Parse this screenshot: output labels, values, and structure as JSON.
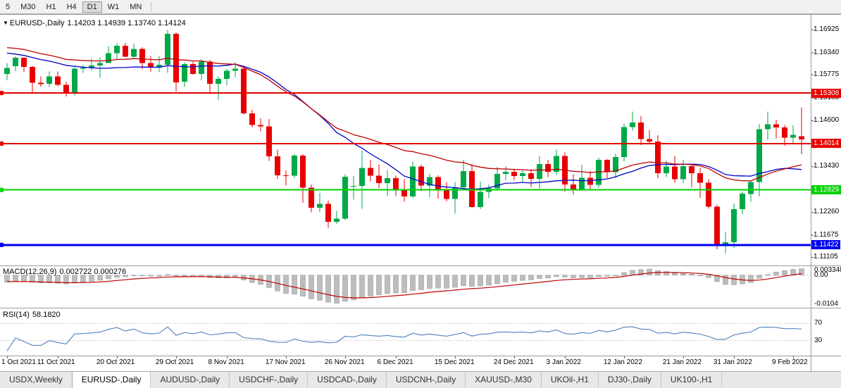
{
  "colors": {
    "up": "#00A847",
    "down": "#E80000",
    "ma_blue": "#0000C8",
    "ma_red": "#C00000",
    "macd_hist": "#bdbdbd",
    "macd_signal": "#C00000",
    "rsi_line": "#4f81bd",
    "hline_red": "#E80000",
    "hline_green": "#00D200",
    "hline_blue": "#0000F0"
  },
  "toolbar": {
    "timeframes": [
      "5",
      "M30",
      "H1",
      "H4",
      "D1",
      "W1",
      "MN"
    ],
    "active": "D1"
  },
  "chart": {
    "symbol_title": "EURUSD-,Daily",
    "ohlc_text": "1.14203 1.14939 1.13740 1.14124"
  },
  "chart_data": {
    "type": "candlestick",
    "symbol": "EURUSD-",
    "timeframe": "Daily",
    "price_range": {
      "top": 1.1722,
      "bottom": 1.1095
    },
    "y_axis": {
      "ticks": [
        "1.16925",
        "1.16340",
        "1.15775",
        "1.15185",
        "1.14600",
        "1.13430",
        "1.12260",
        "1.11675",
        "1.11105"
      ]
    },
    "hlines": [
      {
        "price": 1.15308,
        "label": "1.15308",
        "color_key": "hline_red",
        "width": 2
      },
      {
        "price": 1.14014,
        "label": "1.14014",
        "color_key": "hline_red",
        "width": 2
      },
      {
        "price": 1.12829,
        "label": "1.12829",
        "color_key": "hline_green",
        "width": 2
      },
      {
        "price": 1.11422,
        "label": "1.11422",
        "color_key": "hline_blue",
        "width": 3
      }
    ],
    "overlays": [
      {
        "name": "ma-blue",
        "type": "sma",
        "period": 20,
        "color_key": "ma_blue"
      },
      {
        "name": "ma-red",
        "type": "ema",
        "period": 30,
        "color_key": "ma_red"
      }
    ],
    "x_axis": [
      [
        "1 Oct 2021",
        0
      ],
      [
        "11 Oct 2021",
        6
      ],
      [
        "20 Oct 2021",
        13
      ],
      [
        "29 Oct 2021",
        20
      ],
      [
        "8 Nov 2021",
        26
      ],
      [
        "17 Nov 2021",
        33
      ],
      [
        "26 Nov 2021",
        40
      ],
      [
        "6 Dec 2021",
        46
      ],
      [
        "15 Dec 2021",
        53
      ],
      [
        "24 Dec 2021",
        60
      ],
      [
        "3 Jan 2022",
        66
      ],
      [
        "12 Jan 2022",
        73
      ],
      [
        "21 Jan 2022",
        80
      ],
      [
        "31 Jan 2022",
        86
      ],
      [
        "9 Feb 2022",
        93
      ]
    ],
    "candles": [
      [
        1.158,
        1.1608,
        1.1563,
        1.1595
      ],
      [
        1.16,
        1.1625,
        1.1587,
        1.1621
      ],
      [
        1.1621,
        1.1622,
        1.1585,
        1.1598
      ],
      [
        1.1598,
        1.16,
        1.1529,
        1.1557
      ],
      [
        1.1557,
        1.1573,
        1.1546,
        1.1554
      ],
      [
        1.1554,
        1.1586,
        1.1546,
        1.1573
      ],
      [
        1.1573,
        1.1586,
        1.1548,
        1.1552
      ],
      [
        1.1552,
        1.156,
        1.1522,
        1.153
      ],
      [
        1.153,
        1.1597,
        1.1525,
        1.1593
      ],
      [
        1.1593,
        1.1602,
        1.1582,
        1.1596
      ],
      [
        1.1596,
        1.1619,
        1.1588,
        1.1601
      ],
      [
        1.1601,
        1.1622,
        1.1571,
        1.1608
      ],
      [
        1.1608,
        1.1651,
        1.1608,
        1.1633
      ],
      [
        1.1633,
        1.1658,
        1.1617,
        1.1652
      ],
      [
        1.1652,
        1.1659,
        1.1622,
        1.1624
      ],
      [
        1.1624,
        1.1656,
        1.162,
        1.1644
      ],
      [
        1.1644,
        1.1648,
        1.1591,
        1.1608
      ],
      [
        1.1608,
        1.1626,
        1.1585,
        1.1596
      ],
      [
        1.1596,
        1.1626,
        1.1584,
        1.1603
      ],
      [
        1.1603,
        1.1692,
        1.1582,
        1.1682
      ],
      [
        1.1682,
        1.1686,
        1.1535,
        1.1558
      ],
      [
        1.156,
        1.1609,
        1.1547,
        1.1605
      ],
      [
        1.1605,
        1.1611,
        1.1578,
        1.158
      ],
      [
        1.158,
        1.1617,
        1.1563,
        1.1611
      ],
      [
        1.1611,
        1.1616,
        1.1528,
        1.1554
      ],
      [
        1.1554,
        1.1573,
        1.1514,
        1.1567
      ],
      [
        1.1567,
        1.1593,
        1.1551,
        1.1588
      ],
      [
        1.1588,
        1.1609,
        1.1572,
        1.1593
      ],
      [
        1.1593,
        1.1598,
        1.1476,
        1.1479
      ],
      [
        1.1479,
        1.1488,
        1.1443,
        1.1449
      ],
      [
        1.1449,
        1.1466,
        1.1433,
        1.1445
      ],
      [
        1.1445,
        1.1464,
        1.1357,
        1.1369
      ],
      [
        1.1369,
        1.1386,
        1.131,
        1.132
      ],
      [
        1.132,
        1.1333,
        1.1294,
        1.1319
      ],
      [
        1.1319,
        1.1374,
        1.1314,
        1.1371
      ],
      [
        1.1371,
        1.1374,
        1.125,
        1.1289
      ],
      [
        1.1289,
        1.1297,
        1.1226,
        1.1237
      ],
      [
        1.1237,
        1.1275,
        1.1226,
        1.1247
      ],
      [
        1.1247,
        1.1255,
        1.1186,
        1.1201
      ],
      [
        1.1201,
        1.1229,
        1.1196,
        1.1209
      ],
      [
        1.1209,
        1.1323,
        1.1206,
        1.1317
      ],
      [
        1.1291,
        1.1318,
        1.1258,
        1.1293
      ],
      [
        1.1293,
        1.1383,
        1.1235,
        1.1339
      ],
      [
        1.1339,
        1.136,
        1.1305,
        1.1319
      ],
      [
        1.1319,
        1.1348,
        1.1288,
        1.13
      ],
      [
        1.13,
        1.1334,
        1.1267,
        1.1313
      ],
      [
        1.1313,
        1.132,
        1.1267,
        1.1284
      ],
      [
        1.1284,
        1.131,
        1.1253,
        1.1266
      ],
      [
        1.1266,
        1.1355,
        1.1263,
        1.1343
      ],
      [
        1.1343,
        1.1348,
        1.128,
        1.1294
      ],
      [
        1.1294,
        1.1324,
        1.1264,
        1.1316
      ],
      [
        1.1316,
        1.132,
        1.1261,
        1.1284
      ],
      [
        1.1284,
        1.1303,
        1.1254,
        1.126
      ],
      [
        1.126,
        1.1303,
        1.1222,
        1.129
      ],
      [
        1.129,
        1.136,
        1.1289,
        1.1331
      ],
      [
        1.1331,
        1.1349,
        1.1237,
        1.1239
      ],
      [
        1.1239,
        1.1304,
        1.1234,
        1.1278
      ],
      [
        1.1278,
        1.1297,
        1.1262,
        1.1287
      ],
      [
        1.1287,
        1.1342,
        1.1284,
        1.1324
      ],
      [
        1.1324,
        1.1344,
        1.1308,
        1.1329
      ],
      [
        1.1329,
        1.1337,
        1.1308,
        1.1318
      ],
      [
        1.1318,
        1.1333,
        1.1304,
        1.1326
      ],
      [
        1.1326,
        1.1336,
        1.129,
        1.1311
      ],
      [
        1.1311,
        1.1369,
        1.1286,
        1.1349
      ],
      [
        1.1349,
        1.136,
        1.1316,
        1.1329
      ],
      [
        1.1329,
        1.1386,
        1.1322,
        1.137
      ],
      [
        1.137,
        1.1379,
        1.1279,
        1.1297
      ],
      [
        1.1297,
        1.1323,
        1.1272,
        1.1285
      ],
      [
        1.1285,
        1.1347,
        1.1281,
        1.1314
      ],
      [
        1.1314,
        1.1332,
        1.1285,
        1.1296
      ],
      [
        1.1296,
        1.1365,
        1.1289,
        1.136
      ],
      [
        1.136,
        1.1362,
        1.1313,
        1.1328
      ],
      [
        1.1328,
        1.1375,
        1.1314,
        1.1367
      ],
      [
        1.1367,
        1.1453,
        1.1355,
        1.1444
      ],
      [
        1.1444,
        1.1483,
        1.1435,
        1.1455
      ],
      [
        1.1455,
        1.1472,
        1.1398,
        1.1413
      ],
      [
        1.1413,
        1.1436,
        1.1402,
        1.1407
      ],
      [
        1.1407,
        1.1423,
        1.1313,
        1.1326
      ],
      [
        1.1326,
        1.1358,
        1.1316,
        1.1343
      ],
      [
        1.1343,
        1.137,
        1.1301,
        1.131
      ],
      [
        1.131,
        1.136,
        1.13,
        1.1344
      ],
      [
        1.1344,
        1.1349,
        1.129,
        1.1326
      ],
      [
        1.1326,
        1.134,
        1.1263,
        1.1301
      ],
      [
        1.1301,
        1.131,
        1.1235,
        1.124
      ],
      [
        1.124,
        1.1245,
        1.1131,
        1.1144
      ],
      [
        1.1144,
        1.1175,
        1.1121,
        1.1149
      ],
      [
        1.1149,
        1.1248,
        1.1135,
        1.1234
      ],
      [
        1.1234,
        1.1279,
        1.1221,
        1.1273
      ],
      [
        1.1273,
        1.1305,
        1.1253,
        1.1303
      ],
      [
        1.1303,
        1.1452,
        1.1266,
        1.1438
      ],
      [
        1.1438,
        1.1483,
        1.1411,
        1.1451
      ],
      [
        1.1451,
        1.1463,
        1.1414,
        1.1443
      ],
      [
        1.1443,
        1.1449,
        1.1396,
        1.1417
      ],
      [
        1.1417,
        1.1448,
        1.1403,
        1.1424
      ],
      [
        1.14203,
        1.14939,
        1.1374,
        1.14124
      ]
    ],
    "macd": {
      "label": "MACD(12,26,9)",
      "values": "0.002722 0.000276",
      "fast": 12,
      "slow": 26,
      "signal": 9,
      "axis_top": "0.003348",
      "axis_zero": "0.00",
      "axis_bottom": "-0.0104"
    },
    "rsi": {
      "label": "RSI(14)",
      "value": "58.1820",
      "period": 14,
      "levels": [
        70,
        30
      ]
    }
  },
  "tabs": {
    "active_index": 1,
    "items": [
      "USDX,Weekly",
      "EURUSD-,Daily",
      "AUDUSD-,Daily",
      "USDCHF-,Daily",
      "USDCAD-,Daily",
      "USDCNH-,Daily",
      "XAUUSD-,M30",
      "UKOil-,H1",
      "DJ30-,Daily",
      "UK100-,H1"
    ]
  }
}
